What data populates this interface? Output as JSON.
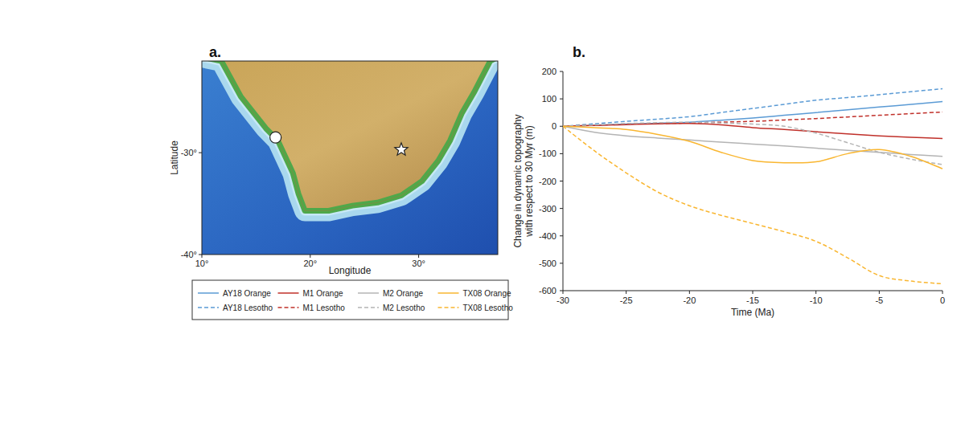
{
  "chart_data": [
    {
      "type": "map",
      "title": "a.",
      "x_label": "Longitude",
      "y_label": "Latitude",
      "xlim": [
        10,
        37.3
      ],
      "ylim": [
        -40,
        -21
      ],
      "xticks": [
        {
          "value": 10,
          "label": "10°"
        },
        {
          "value": 20,
          "label": "20°"
        },
        {
          "value": 30,
          "label": "30°"
        }
      ],
      "yticks": [
        {
          "value": -30,
          "label": "-30°"
        },
        {
          "value": -40,
          "label": "-40°"
        }
      ],
      "series": [
        {
          "x": [
            16.8
          ],
          "values": [
            -28.5
          ],
          "marker": "circle",
          "color": "#ffffff"
        },
        {
          "x": [
            28.4
          ],
          "values": [
            -29.7
          ],
          "marker": "star",
          "color": "#ffffff"
        }
      ]
    },
    {
      "type": "line",
      "title": "b.",
      "x_label": "Time (Ma)",
      "y_label": [
        "Change in dynamic topography",
        "with respect to 30 Myr (m)"
      ],
      "xlim": [
        -30,
        0
      ],
      "ylim": [
        -600,
        200
      ],
      "xticks": [
        -30,
        -25,
        -20,
        -15,
        -10,
        -5,
        0
      ],
      "yticks": [
        -600,
        -500,
        -400,
        -300,
        -200,
        -100,
        0,
        100,
        200
      ],
      "grid": false,
      "legend": "bottom-left",
      "x": [
        -30,
        -27.5,
        -25,
        -22.5,
        -20,
        -17.5,
        -15,
        -12.5,
        -10,
        -7.5,
        -5,
        -2.5,
        0
      ],
      "series": [
        {
          "name": "AY18 Orange",
          "color": "#5b9bd5",
          "line_style": "solid",
          "values": [
            0,
            4,
            8,
            11,
            15,
            22,
            30,
            40,
            50,
            60,
            70,
            80,
            90
          ]
        },
        {
          "name": "AY18 Lesotho",
          "color": "#5b9bd5",
          "line_style": "dashed",
          "values": [
            0,
            9,
            18,
            26,
            35,
            50,
            65,
            80,
            95,
            105,
            115,
            126,
            137
          ]
        },
        {
          "name": "M1 Orange",
          "color": "#c0302a",
          "line_style": "solid",
          "values": [
            0,
            3,
            6,
            9,
            10,
            5,
            -5,
            -12,
            -20,
            -28,
            -35,
            -40,
            -45
          ]
        },
        {
          "name": "M1 Lesotho",
          "color": "#c0302a",
          "line_style": "dashed",
          "values": [
            0,
            4,
            8,
            10,
            12,
            15,
            18,
            23,
            28,
            34,
            40,
            46,
            52
          ]
        },
        {
          "name": "M2 Orange",
          "color": "#b4b4b4",
          "line_style": "solid",
          "values": [
            0,
            -22,
            -35,
            -43,
            -50,
            -58,
            -65,
            -72,
            -80,
            -88,
            -95,
            -103,
            -110
          ]
        },
        {
          "name": "M2 Lesotho",
          "color": "#b4b4b4",
          "line_style": "dashed",
          "values": [
            0,
            5,
            10,
            13,
            15,
            12,
            8,
            0,
            -25,
            -60,
            -95,
            -120,
            -140
          ]
        },
        {
          "name": "TX08 Orange",
          "color": "#f9b630",
          "line_style": "solid",
          "values": [
            0,
            -5,
            -12,
            -30,
            -55,
            -95,
            -125,
            -133,
            -130,
            -100,
            -85,
            -110,
            -155
          ]
        },
        {
          "name": "TX08 Lesotho",
          "color": "#f9b630",
          "line_style": "dashed",
          "values": [
            0,
            -90,
            -170,
            -240,
            -290,
            -325,
            -355,
            -385,
            -420,
            -480,
            -545,
            -565,
            -575
          ]
        }
      ]
    }
  ]
}
